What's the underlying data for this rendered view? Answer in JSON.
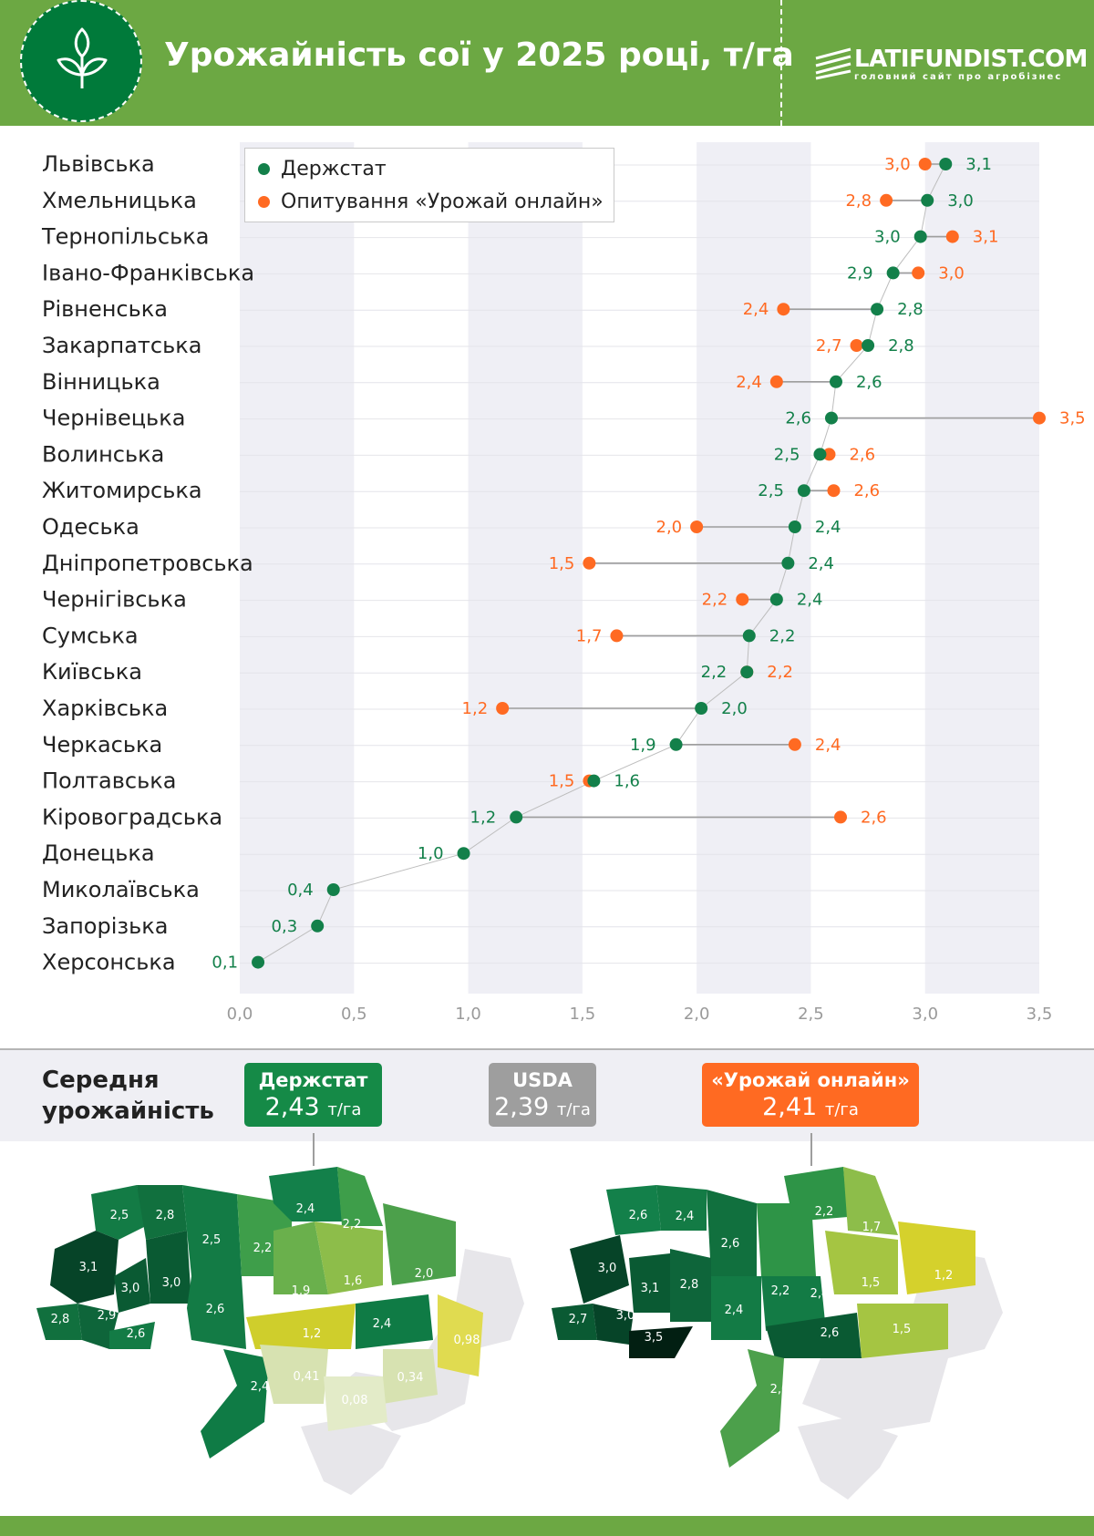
{
  "header": {
    "title": "Урожайність сої у 2025 році, т/га",
    "logo": "LATIFUNDIST.COM",
    "logo_sub": "головний сайт про агробізнес"
  },
  "legend": {
    "derzhstat": "Держстат",
    "survey": "Опитування «Урожай онлайн»"
  },
  "colors": {
    "derzhstat": "#13804a",
    "survey": "#ff6a22",
    "header": "#6ca843"
  },
  "chart_data": {
    "type": "dot",
    "xlim": [
      0,
      3.5
    ],
    "xticks": [
      "0,0",
      "0,5",
      "1,0",
      "1,5",
      "2,0",
      "2,5",
      "3,0",
      "3,5"
    ],
    "categories": [
      "Львівська",
      "Хмельницька",
      "Тернопільська",
      "Івано-Франківська",
      "Рівненська",
      "Закарпатська",
      "Вінницька",
      "Чернівецька",
      "Волинська",
      "Житомирська",
      "Одеська",
      "Дніпропетровська",
      "Чернігівська",
      "Сумська",
      "Київська",
      "Харківська",
      "Черкаська",
      "Полтавська",
      "Кіровоградська",
      "Донецька",
      "Миколаївська",
      "Запорізька",
      "Херсонська"
    ],
    "series": [
      {
        "name": "Держстат",
        "values": [
          3.09,
          3.01,
          2.98,
          2.86,
          2.79,
          2.75,
          2.61,
          2.59,
          2.54,
          2.47,
          2.43,
          2.4,
          2.35,
          2.23,
          2.22,
          2.02,
          1.91,
          1.55,
          1.21,
          0.98,
          0.41,
          0.34,
          0.08
        ],
        "labels": [
          "3,1",
          "3,0",
          "3,0",
          "2,9",
          "2,8",
          "2,8",
          "2,6",
          "2,6",
          "2,5",
          "2,5",
          "2,4",
          "2,4",
          "2,4",
          "2,2",
          "2,2",
          "2,0",
          "1,9",
          "1,6",
          "1,2",
          "1,0",
          "0,4",
          "0,3",
          "0,1"
        ]
      },
      {
        "name": "Опитування «Урожай онлайн»",
        "values": [
          3.0,
          2.83,
          3.12,
          2.97,
          2.38,
          2.7,
          2.35,
          3.5,
          2.58,
          2.6,
          2.0,
          1.53,
          2.2,
          1.65,
          2.22,
          1.15,
          2.43,
          1.53,
          2.63,
          null,
          null,
          null,
          null
        ],
        "labels": [
          "3,0",
          "2,8",
          "3,1",
          "3,0",
          "2,4",
          "2,7",
          "2,4",
          "3,5",
          "2,6",
          "2,6",
          "2,0",
          "1,5",
          "2,2",
          "1,7",
          "2,2",
          "1,2",
          "2,4",
          "1,5",
          "2,6",
          null,
          null,
          null,
          null
        ]
      }
    ]
  },
  "averages": {
    "title": "Середня урожайність",
    "unit": "т/га",
    "derzhstat": {
      "label": "Держстат",
      "value": "2,43"
    },
    "usda": {
      "label": "USDA",
      "value": "2,39"
    },
    "online": {
      "label": "«Урожай онлайн»",
      "value": "2,41"
    }
  },
  "map_left": [
    "2,5",
    "2,8",
    "3,1",
    "3,0",
    "3,0",
    "2,5",
    "2,2",
    "2,4",
    "2,2",
    "1,6",
    "2,0",
    "1,9",
    "2,9",
    "2,8",
    "2,6",
    "2,6",
    "1,2",
    "2,4",
    "0,98",
    "2,4",
    "0,41",
    "0,34",
    "0,08"
  ],
  "map_right": [
    "2,6",
    "2,4",
    "2,6",
    "3,0",
    "3,1",
    "2,8",
    "2,2",
    "2,2",
    "1,7",
    "1,5",
    "1,2",
    "2,4",
    "3,0",
    "2,7",
    "3,5",
    "2,4",
    "2,6",
    "1,5",
    "2,0"
  ]
}
